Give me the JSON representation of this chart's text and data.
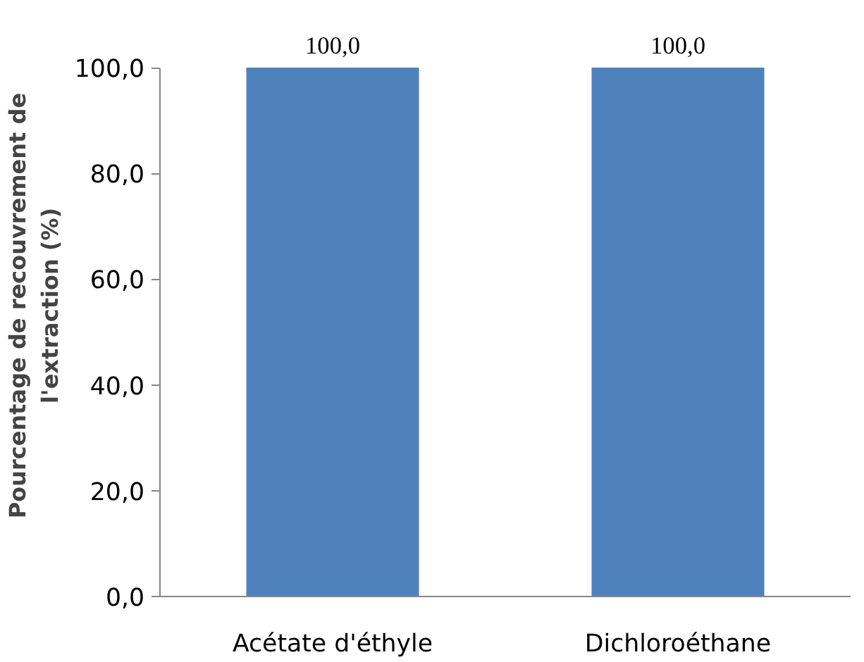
{
  "chart_data": {
    "type": "bar",
    "categories": [
      "Acétate d'éthyle",
      "Dichloroéthane"
    ],
    "values": [
      100,
      100
    ],
    "value_labels": [
      "100,0",
      "100,0"
    ],
    "color": "#4f81bd",
    "ylabel": "Pourcentage de recouvrement de\nl'extraction (%)",
    "ylim": [
      0,
      100
    ],
    "yticks": [
      {
        "value": 0,
        "label": "0,0"
      },
      {
        "value": 20,
        "label": "20,0"
      },
      {
        "value": 40,
        "label": "40,0"
      },
      {
        "value": 60,
        "label": "60,0"
      },
      {
        "value": 80,
        "label": "80,0"
      },
      {
        "value": 100,
        "label": "100,0"
      }
    ],
    "grid": false
  }
}
